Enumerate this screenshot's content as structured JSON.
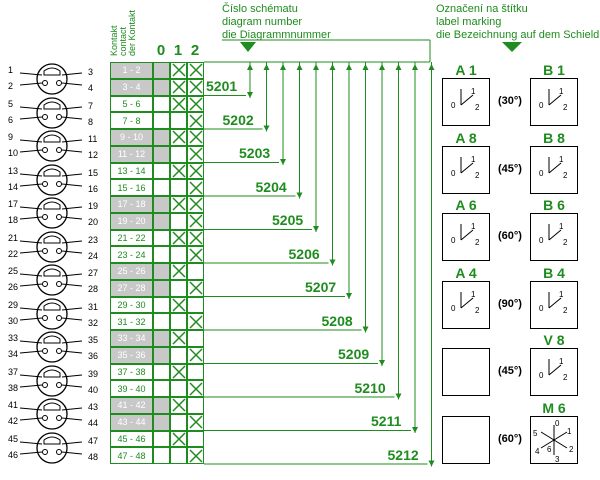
{
  "header_diagram": [
    "Číslo schématu",
    "diagram number",
    "die Diagrammnummer"
  ],
  "header_label": [
    "Označení na štítku",
    "label marking",
    "die Bezeichnung auf dem Schield"
  ],
  "contact_header": [
    "Kontakt",
    "contact",
    "der Kontakt"
  ],
  "positions": [
    "0",
    "1",
    "2"
  ],
  "rows": [
    {
      "label": "1 - 2",
      "shaded": true,
      "x0": false,
      "x1": true,
      "x2": true
    },
    {
      "label": "3 - 4",
      "shaded": true,
      "x0": false,
      "x1": true,
      "x2": true
    },
    {
      "label": "5 - 6",
      "shaded": false,
      "x0": false,
      "x1": true,
      "x2": true
    },
    {
      "label": "7 - 8",
      "shaded": false,
      "x0": false,
      "x1": false,
      "x2": true
    },
    {
      "label": "9 - 10",
      "shaded": true,
      "x0": false,
      "x1": true,
      "x2": true
    },
    {
      "label": "11 - 12",
      "shaded": true,
      "x0": false,
      "x1": false,
      "x2": true
    },
    {
      "label": "13 - 14",
      "shaded": false,
      "x0": false,
      "x1": true,
      "x2": true
    },
    {
      "label": "15 - 16",
      "shaded": false,
      "x0": false,
      "x1": false,
      "x2": true
    },
    {
      "label": "17 - 18",
      "shaded": true,
      "x0": false,
      "x1": true,
      "x2": true
    },
    {
      "label": "19 - 20",
      "shaded": true,
      "x0": false,
      "x1": false,
      "x2": true
    },
    {
      "label": "21 - 22",
      "shaded": false,
      "x0": false,
      "x1": true,
      "x2": true
    },
    {
      "label": "23 - 24",
      "shaded": false,
      "x0": false,
      "x1": false,
      "x2": true
    },
    {
      "label": "25 - 26",
      "shaded": true,
      "x0": false,
      "x1": true,
      "x2": false
    },
    {
      "label": "27 - 28",
      "shaded": true,
      "x0": false,
      "x1": false,
      "x2": true
    },
    {
      "label": "29 - 30",
      "shaded": false,
      "x0": false,
      "x1": true,
      "x2": false
    },
    {
      "label": "31 - 32",
      "shaded": false,
      "x0": false,
      "x1": false,
      "x2": true
    },
    {
      "label": "33 - 34",
      "shaded": true,
      "x0": false,
      "x1": true,
      "x2": false
    },
    {
      "label": "35 - 36",
      "shaded": true,
      "x0": false,
      "x1": false,
      "x2": true
    },
    {
      "label": "37 - 38",
      "shaded": false,
      "x0": false,
      "x1": true,
      "x2": false
    },
    {
      "label": "39 - 40",
      "shaded": false,
      "x0": false,
      "x1": false,
      "x2": true
    },
    {
      "label": "41 - 42",
      "shaded": true,
      "x0": false,
      "x1": true,
      "x2": false
    },
    {
      "label": "43 - 44",
      "shaded": true,
      "x0": false,
      "x1": false,
      "x2": true
    },
    {
      "label": "45 - 46",
      "shaded": false,
      "x0": false,
      "x1": true,
      "x2": false
    },
    {
      "label": "47 - 48",
      "shaded": false,
      "x0": false,
      "x1": false,
      "x2": true
    }
  ],
  "diagrams": [
    "5201",
    "5202",
    "5203",
    "5204",
    "5205",
    "5206",
    "5207",
    "5208",
    "5209",
    "5210",
    "5211",
    "5212"
  ],
  "switch_pins": [
    [
      "1",
      "3",
      "2",
      "4"
    ],
    [
      "5",
      "7",
      "6",
      "8"
    ],
    [
      "9",
      "11",
      "10",
      "12"
    ],
    [
      "13",
      "15",
      "14",
      "16"
    ],
    [
      "17",
      "19",
      "18",
      "20"
    ],
    [
      "21",
      "23",
      "22",
      "24"
    ],
    [
      "25",
      "27",
      "26",
      "28"
    ],
    [
      "29",
      "31",
      "30",
      "32"
    ],
    [
      "33",
      "35",
      "34",
      "36"
    ],
    [
      "37",
      "39",
      "38",
      "40"
    ],
    [
      "41",
      "43",
      "42",
      "44"
    ],
    [
      "45",
      "47",
      "46",
      "48"
    ]
  ],
  "labels": [
    {
      "left": "A 1",
      "right": "B 1",
      "angle": "(30°)",
      "left_marks": [
        "0",
        "1",
        "2"
      ],
      "right_marks": [
        "0",
        "1",
        "2"
      ]
    },
    {
      "left": "A 8",
      "right": "B 8",
      "angle": "(45°)",
      "left_marks": [
        "0",
        "1",
        "2"
      ],
      "right_marks": [
        "0",
        "1",
        "2"
      ]
    },
    {
      "left": "A 6",
      "right": "B 6",
      "angle": "(60°)",
      "left_marks": [
        "0",
        "1",
        "2"
      ],
      "right_marks": [
        "0",
        "1",
        "2"
      ]
    },
    {
      "left": "A 4",
      "right": "B 4",
      "angle": "(90°)",
      "left_marks": [
        "0",
        "1",
        "2"
      ],
      "right_marks": [
        "0",
        "1",
        "2"
      ]
    },
    {
      "left": "",
      "right": "V 8",
      "angle": "(45°)",
      "left_marks": [],
      "right_marks": [
        "0",
        "1",
        "2"
      ]
    },
    {
      "left": "",
      "right": "M 6",
      "angle": "(60°)",
      "left_marks": [],
      "right_marks": [
        "0",
        "1",
        "2",
        "3",
        "4",
        "5",
        "6"
      ]
    }
  ],
  "colors": {
    "green": "#1e8c1e",
    "shade": "#c8c8c8"
  }
}
